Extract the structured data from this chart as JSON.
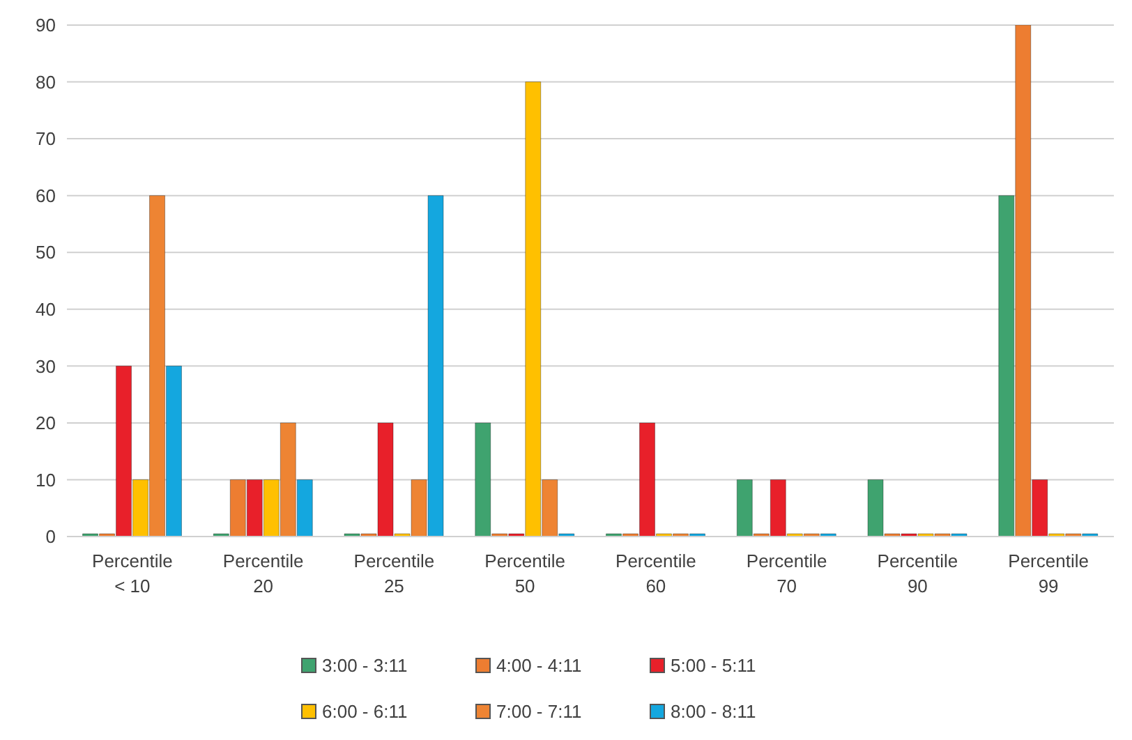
{
  "chart_data": {
    "type": "bar",
    "categories": [
      "Percentile < 10",
      "Percentile 20",
      "Percentile 25",
      "Percentile 50",
      "Percentile 60",
      "Percentile 70",
      "Percentile 90",
      "Percentile 99"
    ],
    "series": [
      {
        "name": "3:00 - 3:11",
        "color": "#3fa36f",
        "values": [
          0,
          0,
          0,
          20,
          0,
          10,
          10,
          60
        ]
      },
      {
        "name": "4:00 - 4:11",
        "color": "#ed7d31",
        "values": [
          0,
          10,
          0,
          0,
          0,
          0,
          0,
          90
        ]
      },
      {
        "name": "5:00 - 5:11",
        "color": "#e8202a",
        "values": [
          30,
          10,
          20,
          0,
          20,
          10,
          0,
          10
        ]
      },
      {
        "name": "6:00 - 6:11",
        "color": "#ffc000",
        "values": [
          10,
          10,
          0,
          80,
          0,
          0,
          0,
          0
        ]
      },
      {
        "name": "7:00 - 7:11",
        "color": "#ee8433",
        "values": [
          60,
          20,
          10,
          10,
          0,
          0,
          0,
          0
        ]
      },
      {
        "name": "8:00 - 8:11",
        "color": "#14a7df",
        "values": [
          30,
          10,
          60,
          0,
          0,
          0,
          0,
          0
        ]
      }
    ],
    "ylim": [
      0,
      90
    ],
    "yticks": [
      0,
      10,
      20,
      30,
      40,
      50,
      60,
      70,
      80,
      90
    ],
    "grid": "y",
    "legend": "bottom"
  }
}
